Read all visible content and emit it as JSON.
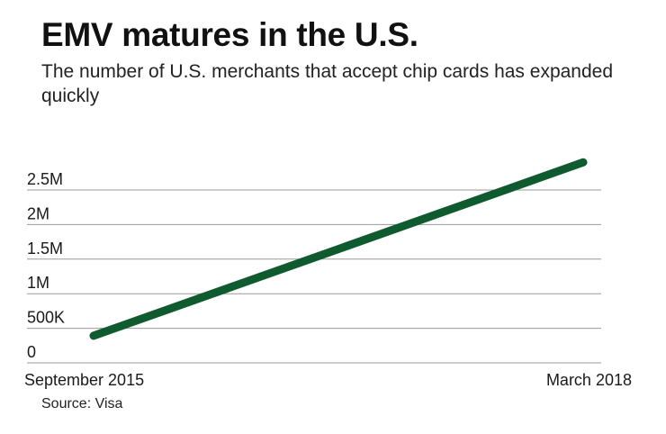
{
  "chart_data": {
    "type": "line",
    "title": "EMV matures in the U.S.",
    "subtitle": "The number of U.S. merchants that accept chip cards has expanded quickly",
    "source": "Source: Visa",
    "xlabel": "",
    "ylabel": "",
    "x": [
      "September 2015",
      "March 2018"
    ],
    "series": [
      {
        "values": [
          392000,
          2900000
        ]
      }
    ],
    "ylim": [
      0,
      2500000
    ],
    "yticks": [
      0,
      500000,
      1000000,
      1500000,
      2000000,
      2500000
    ],
    "ytick_labels": [
      "0",
      "500K",
      "1M",
      "1.5M",
      "2M",
      "2.5M"
    ],
    "grid": true,
    "line_color": "#0f5a2e",
    "grid_color": "#9a9a9a"
  }
}
